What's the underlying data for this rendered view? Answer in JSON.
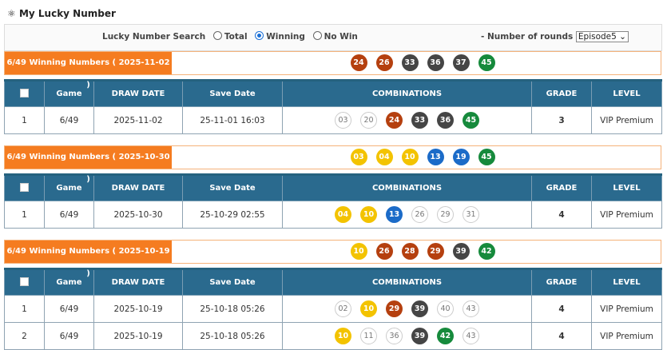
{
  "header": {
    "title": "My Lucky Number",
    "icon": "atom-icon"
  },
  "search": {
    "label": "Lucky Number Search",
    "options": [
      "Total",
      "Winning",
      "No Win"
    ],
    "selected": "Winning",
    "rounds_label": "- Number of rounds",
    "rounds_value": "Episode5"
  },
  "columns": [
    "",
    "Game",
    "DRAW DATE",
    "Save Date",
    "COMBINATIONS",
    "GRADE",
    "LEVEL"
  ],
  "colors": {
    "yellow": "#f3c300",
    "blue": "#1b6bc8",
    "red": "#b5400f",
    "dark": "#454545",
    "green": "#168a3c"
  },
  "draws": [
    {
      "label": "6/49 Winning Numbers ( 2025-11-02 )",
      "numbers": [
        {
          "n": "24",
          "c": "red"
        },
        {
          "n": "26",
          "c": "red"
        },
        {
          "n": "33",
          "c": "dark"
        },
        {
          "n": "36",
          "c": "dark"
        },
        {
          "n": "37",
          "c": "dark"
        },
        {
          "n": "45",
          "c": "green"
        }
      ],
      "rows": [
        {
          "no": "1",
          "game": "6/49",
          "draw_date": "2025-11-02",
          "save_date": "25-11-01 16:03",
          "combo": [
            {
              "n": "03",
              "c": "off"
            },
            {
              "n": "20",
              "c": "off"
            },
            {
              "n": "24",
              "c": "red"
            },
            {
              "n": "33",
              "c": "dark"
            },
            {
              "n": "36",
              "c": "dark"
            },
            {
              "n": "45",
              "c": "green"
            }
          ],
          "grade": "3",
          "level": "VIP Premium"
        }
      ]
    },
    {
      "label": "6/49 Winning Numbers ( 2025-10-30 )",
      "numbers": [
        {
          "n": "03",
          "c": "yellow"
        },
        {
          "n": "04",
          "c": "yellow"
        },
        {
          "n": "10",
          "c": "yellow"
        },
        {
          "n": "13",
          "c": "blue"
        },
        {
          "n": "19",
          "c": "blue"
        },
        {
          "n": "45",
          "c": "green"
        }
      ],
      "rows": [
        {
          "no": "1",
          "game": "6/49",
          "draw_date": "2025-10-30",
          "save_date": "25-10-29 02:55",
          "combo": [
            {
              "n": "04",
              "c": "yellow"
            },
            {
              "n": "10",
              "c": "yellow"
            },
            {
              "n": "13",
              "c": "blue"
            },
            {
              "n": "26",
              "c": "off"
            },
            {
              "n": "29",
              "c": "off"
            },
            {
              "n": "31",
              "c": "off"
            }
          ],
          "grade": "4",
          "level": "VIP Premium"
        }
      ]
    },
    {
      "label": "6/49 Winning Numbers ( 2025-10-19 )",
      "numbers": [
        {
          "n": "10",
          "c": "yellow"
        },
        {
          "n": "26",
          "c": "red"
        },
        {
          "n": "28",
          "c": "red"
        },
        {
          "n": "29",
          "c": "red"
        },
        {
          "n": "39",
          "c": "dark"
        },
        {
          "n": "42",
          "c": "green"
        }
      ],
      "rows": [
        {
          "no": "1",
          "game": "6/49",
          "draw_date": "2025-10-19",
          "save_date": "25-10-18 05:26",
          "combo": [
            {
              "n": "02",
              "c": "off"
            },
            {
              "n": "10",
              "c": "yellow"
            },
            {
              "n": "29",
              "c": "red"
            },
            {
              "n": "39",
              "c": "dark"
            },
            {
              "n": "40",
              "c": "off"
            },
            {
              "n": "43",
              "c": "off"
            }
          ],
          "grade": "4",
          "level": "VIP Premium"
        },
        {
          "no": "2",
          "game": "6/49",
          "draw_date": "2025-10-19",
          "save_date": "25-10-18 05:26",
          "combo": [
            {
              "n": "10",
              "c": "yellow"
            },
            {
              "n": "11",
              "c": "off"
            },
            {
              "n": "36",
              "c": "off"
            },
            {
              "n": "39",
              "c": "dark"
            },
            {
              "n": "42",
              "c": "green"
            },
            {
              "n": "43",
              "c": "off"
            }
          ],
          "grade": "4",
          "level": "VIP Premium"
        }
      ]
    }
  ]
}
